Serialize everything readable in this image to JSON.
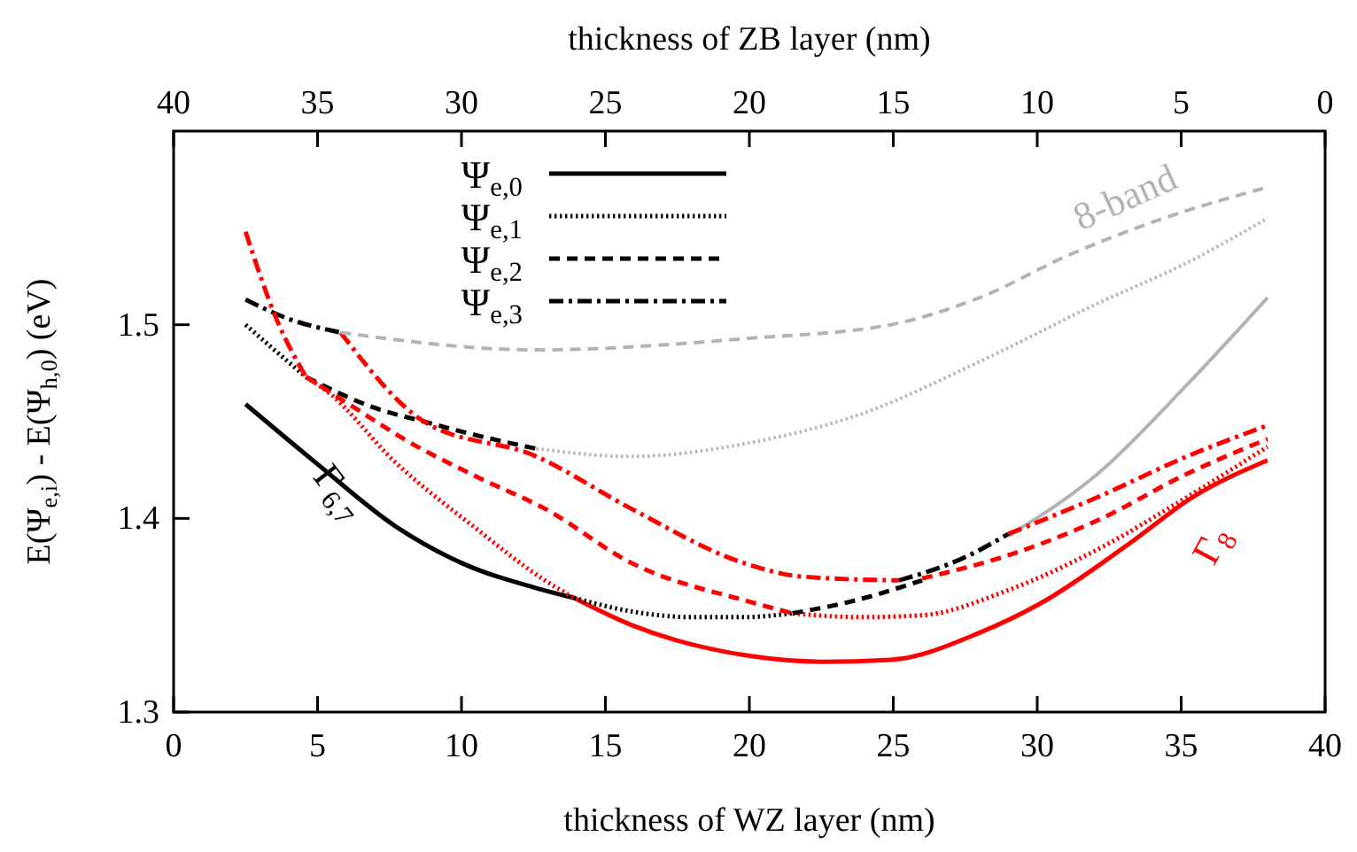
{
  "chart_data": {
    "type": "line",
    "xlabel": "thickness of WZ layer (nm)",
    "x2label": "thickness of ZB layer (nm)",
    "ylabel": "E(Ψ$_{e,i}$) - E(Ψ$_{h,0}$) (eV)",
    "xlim": [
      0,
      40
    ],
    "xticks": [
      0,
      5,
      10,
      15,
      20,
      25,
      30,
      35,
      40
    ],
    "x2lim": [
      40,
      0
    ],
    "x2ticks": [
      40,
      35,
      30,
      25,
      20,
      15,
      10,
      5,
      0
    ],
    "ylim": [
      1.3,
      1.6
    ],
    "yticks": [
      1.3,
      1.4,
      1.5
    ],
    "legend": "top",
    "annotations": [
      "8-band",
      "Γ$_{6,7}$",
      "Γ$_{8}$"
    ],
    "series": [
      {
        "name": "Ψ$_{e,0}$",
        "color": "#000000",
        "line_style": "solid",
        "x": [
          2.5,
          5,
          7.7,
          10,
          12.6,
          13.9
        ],
        "values": [
          1.459,
          1.428,
          1.396,
          1.377,
          1.364,
          1.359
        ]
      },
      {
        "name": "Ψ$_{e,1}$",
        "color": "#000000",
        "line_style": "dotted",
        "x": [
          2.5,
          3.5,
          4.6
        ],
        "values": [
          1.5,
          1.487,
          1.473
        ]
      },
      {
        "name": "Ψ$_{e,2}$",
        "color": "#000000",
        "line_style": "dashed",
        "x": [
          4.6,
          7,
          8.7,
          10.5,
          12.6
        ],
        "values": [
          1.473,
          1.457,
          1.45,
          1.443,
          1.436
        ]
      },
      {
        "name": "Ψ$_{e,3}$",
        "color": "#000000",
        "line_style": "dashdot",
        "x": [
          2.5,
          4,
          5.8
        ],
        "values": [
          1.513,
          1.503,
          1.496
        ]
      },
      {
        "color": "#ff0000",
        "line_style": "solid",
        "x": [
          13.9,
          15.9,
          20,
          22.5,
          24.9,
          28,
          30.1,
          33.2,
          35.4,
          38
        ],
        "values": [
          1.359,
          1.345,
          1.329,
          1.326,
          1.327,
          1.341,
          1.356,
          1.387,
          1.411,
          1.43
        ]
      },
      {
        "color": "#b3b3b3",
        "line_style": "solid",
        "x": [
          29,
          32.1,
          35.2,
          38
        ],
        "values": [
          1.391,
          1.423,
          1.469,
          1.514
        ]
      },
      {
        "color": "#ff0000",
        "line_style": "dotted",
        "x": [
          4.6,
          5.3,
          7.7,
          10.4,
          12.9,
          13.9
        ],
        "values": [
          1.473,
          1.466,
          1.429,
          1.396,
          1.368,
          1.359
        ]
      },
      {
        "color": "#000000",
        "line_style": "dotted",
        "x": [
          13.9,
          15.9,
          18,
          19.8,
          21.5
        ],
        "values": [
          1.359,
          1.352,
          1.349,
          1.349,
          1.351
        ]
      },
      {
        "color": "#ff0000",
        "line_style": "dotted",
        "x": [
          21.5,
          23.9,
          26,
          29,
          32.1,
          35.2,
          38
        ],
        "values": [
          1.351,
          1.349,
          1.35,
          1.363,
          1.384,
          1.411,
          1.437
        ]
      },
      {
        "color": "#b3b3b3",
        "line_style": "dotted",
        "x": [
          12.6,
          15.9,
          20,
          23.9,
          28,
          32.1,
          35.2,
          38
        ],
        "values": [
          1.436,
          1.432,
          1.439,
          1.454,
          1.481,
          1.511,
          1.532,
          1.555
        ]
      },
      {
        "color": "#ff0000",
        "line_style": "dashed",
        "x": [
          4.6,
          6.3,
          8,
          10.6,
          12.9,
          15.9,
          20,
          21.5
        ],
        "values": [
          1.473,
          1.457,
          1.441,
          1.421,
          1.405,
          1.377,
          1.357,
          1.351
        ]
      },
      {
        "color": "#000000",
        "line_style": "dashed",
        "x": [
          21.5,
          23.5,
          26
        ],
        "values": [
          1.351,
          1.357,
          1.368
        ]
      },
      {
        "color": "#ff0000",
        "line_style": "dashed",
        "x": [
          26,
          29,
          32.1,
          35.2,
          38
        ],
        "values": [
          1.369,
          1.381,
          1.399,
          1.423,
          1.441
        ]
      },
      {
        "color": "#ff0000",
        "line_style": "dashdot",
        "x": [
          2.5,
          3.6,
          4.6
        ],
        "values": [
          1.548,
          1.502,
          1.473
        ]
      },
      {
        "color": "#ff0000",
        "line_style": "dashdot",
        "x": [
          5.8,
          8.7,
          12.6,
          15.9,
          19.8,
          21.8,
          25.2
        ],
        "values": [
          1.496,
          1.45,
          1.432,
          1.405,
          1.377,
          1.37,
          1.368
        ]
      },
      {
        "color": "#000000",
        "line_style": "dashdot",
        "x": [
          25.2,
          27.5,
          29
        ],
        "values": [
          1.368,
          1.38,
          1.392
        ]
      },
      {
        "color": "#ff0000",
        "line_style": "dashdot",
        "x": [
          29,
          32.1,
          35.2,
          38
        ],
        "values": [
          1.392,
          1.411,
          1.432,
          1.448
        ]
      },
      {
        "color": "#b3b3b3",
        "line_style": "dashed",
        "x": [
          5.8,
          12.6,
          20,
          24.9,
          28,
          31.1,
          34.2,
          38
        ],
        "values": [
          1.496,
          1.487,
          1.493,
          1.5,
          1.514,
          1.536,
          1.554,
          1.571
        ]
      }
    ]
  }
}
